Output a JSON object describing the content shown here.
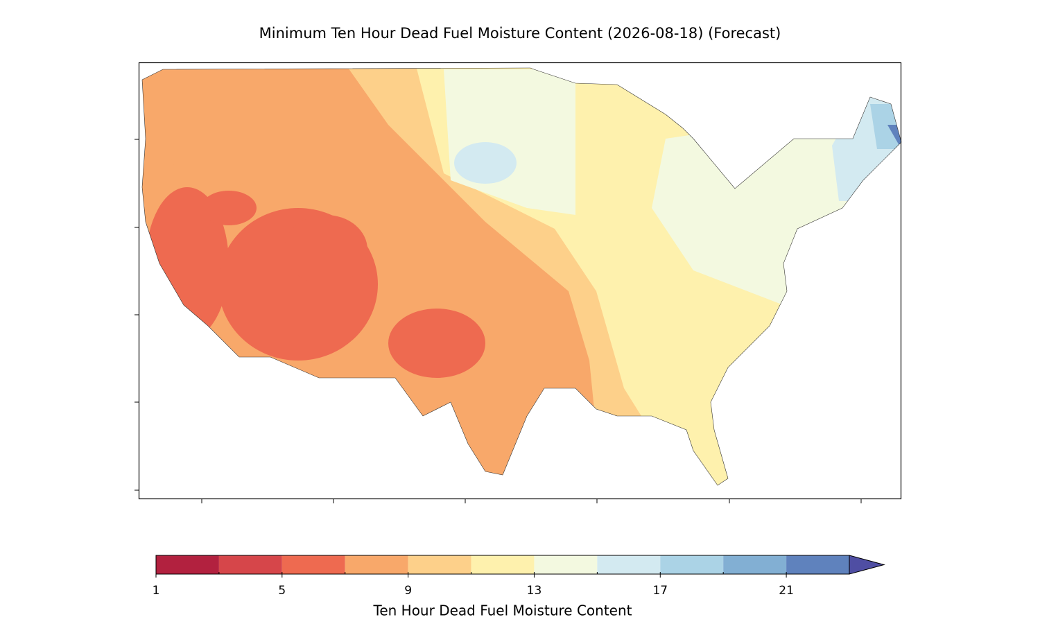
{
  "title": "Minimum Ten Hour Dead Fuel Moisture Content (2026-08-18) (Forecast)",
  "colorbar": {
    "label": "Ten Hour Dead Fuel Moisture Content",
    "bounds": [
      1,
      3,
      5,
      7,
      9,
      11,
      13,
      15,
      17,
      19,
      21,
      23
    ],
    "colors": [
      "#b2213f",
      "#d6464a",
      "#ee6a50",
      "#f8a86a",
      "#fdd08a",
      "#fef1ad",
      "#f3f9e0",
      "#d3eaf1",
      "#abd3e6",
      "#82afd3",
      "#5f82bd"
    ],
    "extend_color": "#4f4ea3",
    "ticks": [
      1,
      5,
      9,
      13,
      17,
      21
    ]
  }
}
